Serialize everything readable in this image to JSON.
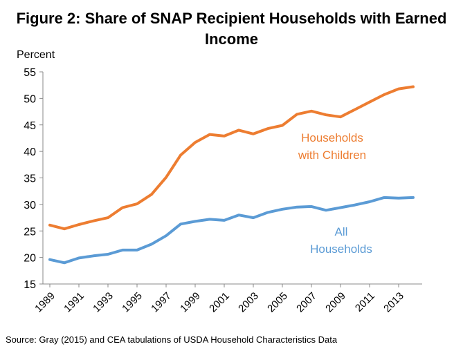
{
  "chart_data": {
    "type": "line",
    "title": "Figure 2: Share of SNAP Recipient Households with Earned Income",
    "ylabel": "Percent",
    "xlabel": "",
    "ylim": [
      15,
      55
    ],
    "yticks": [
      15,
      20,
      25,
      30,
      35,
      40,
      45,
      50,
      55
    ],
    "xlim": [
      1989,
      2014
    ],
    "xticks": [
      "1989",
      "1991",
      "1993",
      "1995",
      "1997",
      "1999",
      "2001",
      "2003",
      "2005",
      "2007",
      "2009",
      "2011",
      "2013"
    ],
    "grid": false,
    "series": [
      {
        "name": "Households with Children",
        "label_lines": [
          "Households",
          "with Children"
        ],
        "color": "#ED7D31",
        "x": [
          1989,
          1990,
          1991,
          1992,
          1993,
          1994,
          1995,
          1996,
          1997,
          1998,
          1999,
          2000,
          2001,
          2002,
          2003,
          2004,
          2005,
          2006,
          2007,
          2008,
          2009,
          2010,
          2011,
          2012,
          2013,
          2014
        ],
        "values": [
          26.1,
          25.4,
          26.2,
          26.9,
          27.5,
          29.4,
          30.1,
          31.9,
          35.1,
          39.3,
          41.7,
          43.2,
          42.9,
          44.0,
          43.3,
          44.3,
          44.9,
          47.0,
          47.6,
          46.9,
          46.5,
          47.9,
          49.3,
          50.7,
          51.8,
          52.2
        ]
      },
      {
        "name": "All Households",
        "label_lines": [
          "All",
          "Households"
        ],
        "color": "#5B9BD5",
        "x": [
          1989,
          1990,
          1991,
          1992,
          1993,
          1994,
          1995,
          1996,
          1997,
          1998,
          1999,
          2000,
          2001,
          2002,
          2003,
          2004,
          2005,
          2006,
          2007,
          2008,
          2009,
          2010,
          2011,
          2012,
          2013,
          2014
        ],
        "values": [
          19.6,
          19.0,
          19.9,
          20.3,
          20.6,
          21.4,
          21.4,
          22.5,
          24.1,
          26.3,
          26.8,
          27.2,
          27.0,
          28.0,
          27.5,
          28.5,
          29.1,
          29.5,
          29.6,
          28.9,
          29.4,
          29.9,
          30.5,
          31.3,
          31.2,
          31.3
        ]
      }
    ],
    "source": "Source:  Gray (2015) and CEA tabulations of USDA Household Characteristics Data"
  }
}
